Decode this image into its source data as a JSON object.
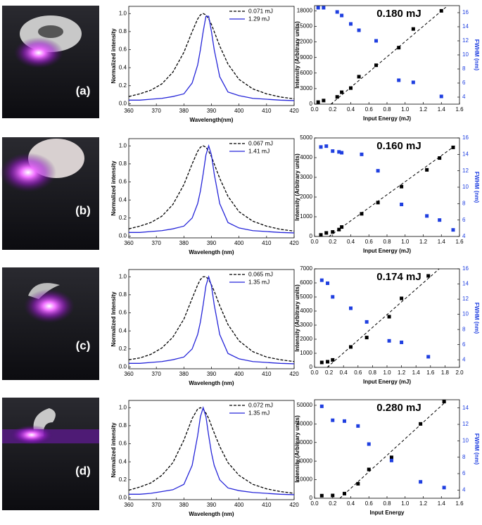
{
  "panel_labels": [
    "(a)",
    "(b)",
    "(c)",
    "(d)"
  ],
  "chart_data": [
    {
      "type": "line",
      "ylabel": "Normalized intensity",
      "xlabel": "Wavelength(nm)",
      "x": [
        360,
        364,
        368,
        372,
        376,
        380,
        383,
        385,
        386,
        387,
        388,
        389,
        390,
        391,
        393,
        396,
        400,
        405,
        410,
        415,
        420
      ],
      "series": [
        {
          "name": "0.071 mJ",
          "color": "#000000",
          "dashed": true,
          "values": [
            0.08,
            0.11,
            0.15,
            0.22,
            0.35,
            0.57,
            0.8,
            0.94,
            0.985,
            1,
            0.985,
            0.94,
            0.88,
            0.8,
            0.64,
            0.44,
            0.27,
            0.165,
            0.11,
            0.075,
            0.055
          ]
        },
        {
          "name": "1.29 mJ",
          "color": "#2626d9",
          "dashed": false,
          "values": [
            0.04,
            0.04,
            0.05,
            0.06,
            0.08,
            0.11,
            0.23,
            0.43,
            0.6,
            0.8,
            0.97,
            0.97,
            0.8,
            0.6,
            0.3,
            0.13,
            0.09,
            0.06,
            0.05,
            0.04,
            0.035
          ]
        }
      ],
      "xlim": [
        360,
        420
      ],
      "xticks": [
        360,
        370,
        380,
        390,
        400,
        410,
        420
      ],
      "ylim": [
        -0.02,
        1.08
      ],
      "yticks": [
        {
          "value": 0,
          "label": "0.0"
        },
        0.2,
        0.4,
        0.6,
        0.8,
        {
          "value": 1,
          "label": "1.0"
        }
      ],
      "legend": "top-right"
    },
    {
      "type": "scatter",
      "annotation": "0.180 mJ",
      "xlabel": "Input Energy (mJ)",
      "ylabel": "Intensity (Arbitrary units)",
      "y2label": "FWHM (nm)",
      "x": [
        0.04,
        0.1,
        0.25,
        0.3,
        0.4,
        0.49,
        0.68,
        0.93,
        1.09,
        1.4
      ],
      "series": [
        {
          "color": "#000000",
          "values": [
            400,
            700,
            1400,
            2300,
            3100,
            5300,
            7500,
            10900,
            14500,
            18000
          ]
        },
        {
          "color": "#1f3fe0",
          "axis": "y2",
          "values": [
            16.7,
            16.7,
            16.1,
            15.6,
            14.4,
            13.5,
            12,
            6.4,
            6.1,
            4.1
          ]
        }
      ],
      "fit": {
        "color": "#000000",
        "x": [
          0.18,
          1.45
        ],
        "y": [
          0,
          18700
        ]
      },
      "xlim": [
        0,
        1.6
      ],
      "xticks": [
        {
          "value": 0,
          "label": "0.0"
        },
        0.2,
        0.4,
        0.6,
        0.8,
        {
          "value": 1,
          "label": "1.0"
        },
        1.2,
        1.4,
        1.6
      ],
      "ylim": [
        0,
        19000
      ],
      "yticks": [
        0,
        3000,
        6000,
        9000,
        12000,
        15000,
        18000
      ],
      "y2lim": [
        3,
        17
      ],
      "y2ticks": [
        4,
        6,
        8,
        10,
        12,
        14,
        16
      ]
    },
    {
      "type": "line",
      "ylabel": "Normalized intensity",
      "xlabel": "Wavelength (nm)",
      "x": [
        360,
        364,
        368,
        372,
        376,
        380,
        383,
        385,
        386,
        387,
        388,
        389,
        390,
        391,
        393,
        396,
        400,
        405,
        410,
        415,
        420
      ],
      "series": [
        {
          "name": "0.067 mJ",
          "color": "#000000",
          "dashed": true,
          "values": [
            0.08,
            0.11,
            0.15,
            0.22,
            0.35,
            0.57,
            0.8,
            0.94,
            0.985,
            1,
            0.985,
            0.94,
            0.88,
            0.8,
            0.64,
            0.44,
            0.27,
            0.165,
            0.11,
            0.075,
            0.055
          ]
        },
        {
          "name": "1.41 mJ",
          "color": "#2626d9",
          "dashed": false,
          "values": [
            0.04,
            0.04,
            0.05,
            0.06,
            0.08,
            0.11,
            0.2,
            0.36,
            0.5,
            0.69,
            0.9,
            1,
            0.9,
            0.69,
            0.36,
            0.15,
            0.09,
            0.06,
            0.05,
            0.04,
            0.035
          ]
        }
      ],
      "xlim": [
        360,
        420
      ],
      "xticks": [
        360,
        370,
        380,
        390,
        400,
        410,
        420
      ],
      "ylim": [
        -0.02,
        1.08
      ],
      "yticks": [
        {
          "value": 0,
          "label": "0.0"
        },
        0.2,
        0.4,
        0.6,
        0.8,
        {
          "value": 1,
          "label": "1.0"
        }
      ],
      "legend": "top-right"
    },
    {
      "type": "scatter",
      "annotation": "0.160 mJ",
      "xlabel": "Input Energy (mJ)",
      "ylabel": "Intensity (Arbitrary units)",
      "y2label": "FWHM (nm)",
      "x": [
        0.07,
        0.13,
        0.2,
        0.27,
        0.3,
        0.52,
        0.7,
        0.96,
        1.24,
        1.38,
        1.53
      ],
      "series": [
        {
          "color": "#000000",
          "values": [
            80,
            180,
            230,
            350,
            480,
            1150,
            1720,
            2530,
            3380,
            3980,
            4520
          ]
        },
        {
          "color": "#1f3fe0",
          "axis": "y2",
          "values": [
            14.9,
            15,
            14.4,
            14.3,
            14.2,
            14,
            12,
            7.9,
            6.5,
            6,
            4.8
          ]
        }
      ],
      "fit": {
        "color": "#000000",
        "x": [
          0.16,
          1.55
        ],
        "y": [
          0,
          4600
        ]
      },
      "xlim": [
        0,
        1.6
      ],
      "xticks": [
        {
          "value": 0,
          "label": "0.0"
        },
        0.2,
        0.4,
        0.6,
        0.8,
        {
          "value": 1,
          "label": "1.0"
        },
        1.2,
        1.4,
        1.6
      ],
      "ylim": [
        0,
        5000
      ],
      "yticks": [
        0,
        1000,
        2000,
        3000,
        4000,
        5000
      ],
      "y2lim": [
        4,
        16
      ],
      "y2ticks": [
        4,
        6,
        8,
        10,
        12,
        14,
        16
      ]
    },
    {
      "type": "line",
      "ylabel": "Normalized Intensity",
      "xlabel": "Wavelength (nm)",
      "x": [
        360,
        364,
        368,
        372,
        376,
        380,
        383,
        385,
        386,
        387,
        388,
        389,
        390,
        391,
        393,
        396,
        400,
        405,
        410,
        415,
        420
      ],
      "series": [
        {
          "name": "0.065 mJ",
          "color": "#000000",
          "dashed": true,
          "values": [
            0.08,
            0.1,
            0.14,
            0.21,
            0.33,
            0.53,
            0.76,
            0.91,
            0.97,
            1,
            1,
            0.97,
            0.91,
            0.84,
            0.68,
            0.47,
            0.29,
            0.17,
            0.11,
            0.08,
            0.06
          ]
        },
        {
          "name": "1.35 mJ",
          "color": "#2626d9",
          "dashed": false,
          "values": [
            0.04,
            0.04,
            0.05,
            0.06,
            0.08,
            0.11,
            0.2,
            0.36,
            0.5,
            0.69,
            0.9,
            1,
            0.9,
            0.69,
            0.36,
            0.15,
            0.09,
            0.06,
            0.05,
            0.04,
            0.035
          ]
        }
      ],
      "xlim": [
        360,
        420
      ],
      "xticks": [
        360,
        370,
        380,
        390,
        400,
        410,
        420
      ],
      "ylim": [
        -0.02,
        1.08
      ],
      "yticks": [
        {
          "value": 0,
          "label": "0.0"
        },
        0.2,
        0.4,
        0.6,
        0.8,
        {
          "value": 1,
          "label": "1.0"
        }
      ],
      "legend": "top-right"
    },
    {
      "type": "scatter",
      "annotation": "0.174 mJ",
      "xlabel": "Input Energy (mJ)",
      "ylabel": "Intensity (Arbitrary units)",
      "y2label": "FWHM (nm)",
      "x": [
        0.1,
        0.18,
        0.25,
        0.5,
        0.72,
        1.03,
        1.2,
        1.57
      ],
      "series": [
        {
          "color": "#000000",
          "values": [
            350,
            400,
            530,
            1450,
            2120,
            3600,
            4900,
            6500
          ]
        },
        {
          "color": "#1f3fe0",
          "axis": "y2",
          "values": [
            14.5,
            14.1,
            12.3,
            10.8,
            9,
            6.5,
            6.3,
            4.4
          ]
        }
      ],
      "fit": {
        "color": "#000000",
        "x": [
          0.174,
          1.72
        ],
        "y": [
          0,
          7000
        ]
      },
      "xlim": [
        0,
        2
      ],
      "xticks": [
        {
          "value": 0,
          "label": "0.0"
        },
        0.2,
        0.4,
        0.6,
        0.8,
        {
          "value": 1,
          "label": "1.0"
        },
        1.2,
        1.4,
        1.6,
        1.8,
        {
          "value": 2,
          "label": "2.0"
        }
      ],
      "ylim": [
        0,
        7000
      ],
      "yticks": [
        0,
        1000,
        2000,
        3000,
        4000,
        5000,
        6000,
        7000
      ],
      "y2lim": [
        3,
        16
      ],
      "y2ticks": [
        4,
        6,
        8,
        10,
        12,
        14,
        16
      ]
    },
    {
      "type": "line",
      "ylabel": "Normalized intensity",
      "xlabel": "Wavelength (nm)",
      "x": [
        360,
        364,
        368,
        372,
        376,
        380,
        383,
        385,
        386,
        387,
        388,
        389,
        390,
        391,
        393,
        396,
        400,
        405,
        410,
        415,
        420
      ],
      "series": [
        {
          "name": "0.072 mJ",
          "color": "#000000",
          "dashed": true,
          "values": [
            0.085,
            0.12,
            0.165,
            0.25,
            0.39,
            0.64,
            0.88,
            0.985,
            1,
            0.985,
            0.94,
            0.88,
            0.8,
            0.72,
            0.57,
            0.39,
            0.25,
            0.15,
            0.1,
            0.07,
            0.05
          ]
        },
        {
          "name": "1.35 mJ",
          "color": "#2626d9",
          "dashed": false,
          "values": [
            0.04,
            0.04,
            0.05,
            0.07,
            0.09,
            0.15,
            0.36,
            0.69,
            0.9,
            1,
            0.9,
            0.69,
            0.5,
            0.36,
            0.2,
            0.11,
            0.08,
            0.06,
            0.05,
            0.04,
            0.035
          ]
        }
      ],
      "xlim": [
        360,
        420
      ],
      "xticks": [
        360,
        370,
        380,
        390,
        400,
        410,
        420
      ],
      "ylim": [
        -0.02,
        1.08
      ],
      "yticks": [
        {
          "value": 0,
          "label": "0.0"
        },
        0.2,
        0.4,
        0.6,
        0.8,
        {
          "value": 1,
          "label": "1.0"
        }
      ],
      "legend": "top-right"
    },
    {
      "type": "scatter",
      "annotation": "0.280 mJ",
      "xlabel": "Input Energy",
      "ylabel": "Intensity (Arbitrary units)",
      "y2label": "FWHM (nm)",
      "x": [
        0.08,
        0.2,
        0.33,
        0.48,
        0.6,
        0.85,
        1.17,
        1.43
      ],
      "series": [
        {
          "color": "#000000",
          "values": [
            1400,
            1500,
            2500,
            7800,
            15500,
            22000,
            40000,
            52000
          ]
        },
        {
          "color": "#1f3fe0",
          "axis": "y2",
          "values": [
            14.2,
            12.5,
            12.4,
            11.8,
            9.6,
            7.6,
            5,
            4.3
          ]
        }
      ],
      "fit": {
        "color": "#000000",
        "x": [
          0.28,
          1.45
        ],
        "y": [
          0,
          52000
        ]
      },
      "xlim": [
        0,
        1.6
      ],
      "xticks": [
        {
          "value": 0,
          "label": "0.0"
        },
        0.2,
        0.4,
        0.6,
        0.8,
        {
          "value": 1,
          "label": "1.0"
        },
        1.2,
        1.4,
        1.6
      ],
      "ylim": [
        0,
        53000
      ],
      "yticks": [
        0,
        10000,
        20000,
        30000,
        40000,
        50000
      ],
      "y2lim": [
        3,
        15
      ],
      "y2ticks": [
        4,
        6,
        8,
        10,
        12,
        14
      ]
    }
  ]
}
